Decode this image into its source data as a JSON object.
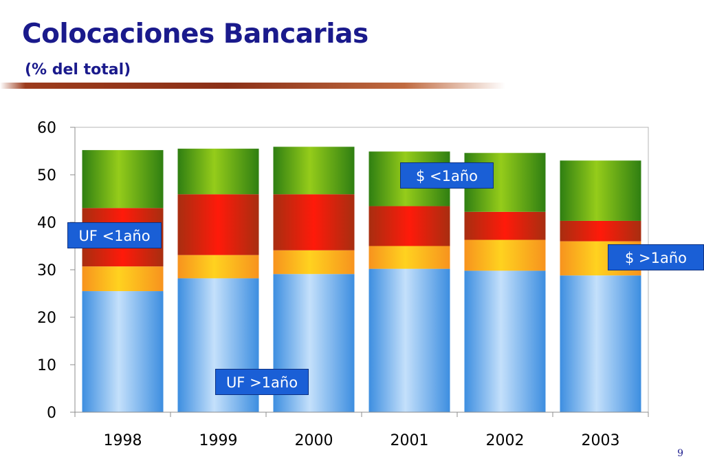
{
  "slide": {
    "title": "Colocaciones Bancarias",
    "subtitle": "(% del total)",
    "page_number": "9"
  },
  "chart_data": {
    "type": "bar",
    "stacked": true,
    "categories": [
      "1998",
      "1999",
      "2000",
      "2001",
      "2002",
      "2003"
    ],
    "series": [
      {
        "name": "UF >1año",
        "values": [
          25.5,
          28.2,
          29.1,
          30.2,
          29.8,
          28.8
        ]
      },
      {
        "name": "$ >1año",
        "values": [
          5.2,
          4.9,
          5.0,
          4.8,
          6.5,
          7.2
        ]
      },
      {
        "name": "UF <1año",
        "values": [
          12.3,
          12.8,
          11.8,
          8.4,
          5.9,
          4.3
        ]
      },
      {
        "name": "$ <1año",
        "values": [
          12.2,
          9.6,
          10.0,
          11.5,
          12.4,
          12.7
        ]
      }
    ],
    "yticks": [
      "0",
      "10",
      "20",
      "30",
      "40",
      "50",
      "60"
    ],
    "ylim": [
      0,
      60
    ],
    "grid": false,
    "colors": [
      "#5ba3e8",
      "#fdb913",
      "#e41b13",
      "#5fa81e"
    ],
    "series_labels": [
      "UF >1año",
      "$ >1año",
      "UF <1año",
      "$ <1año"
    ]
  }
}
